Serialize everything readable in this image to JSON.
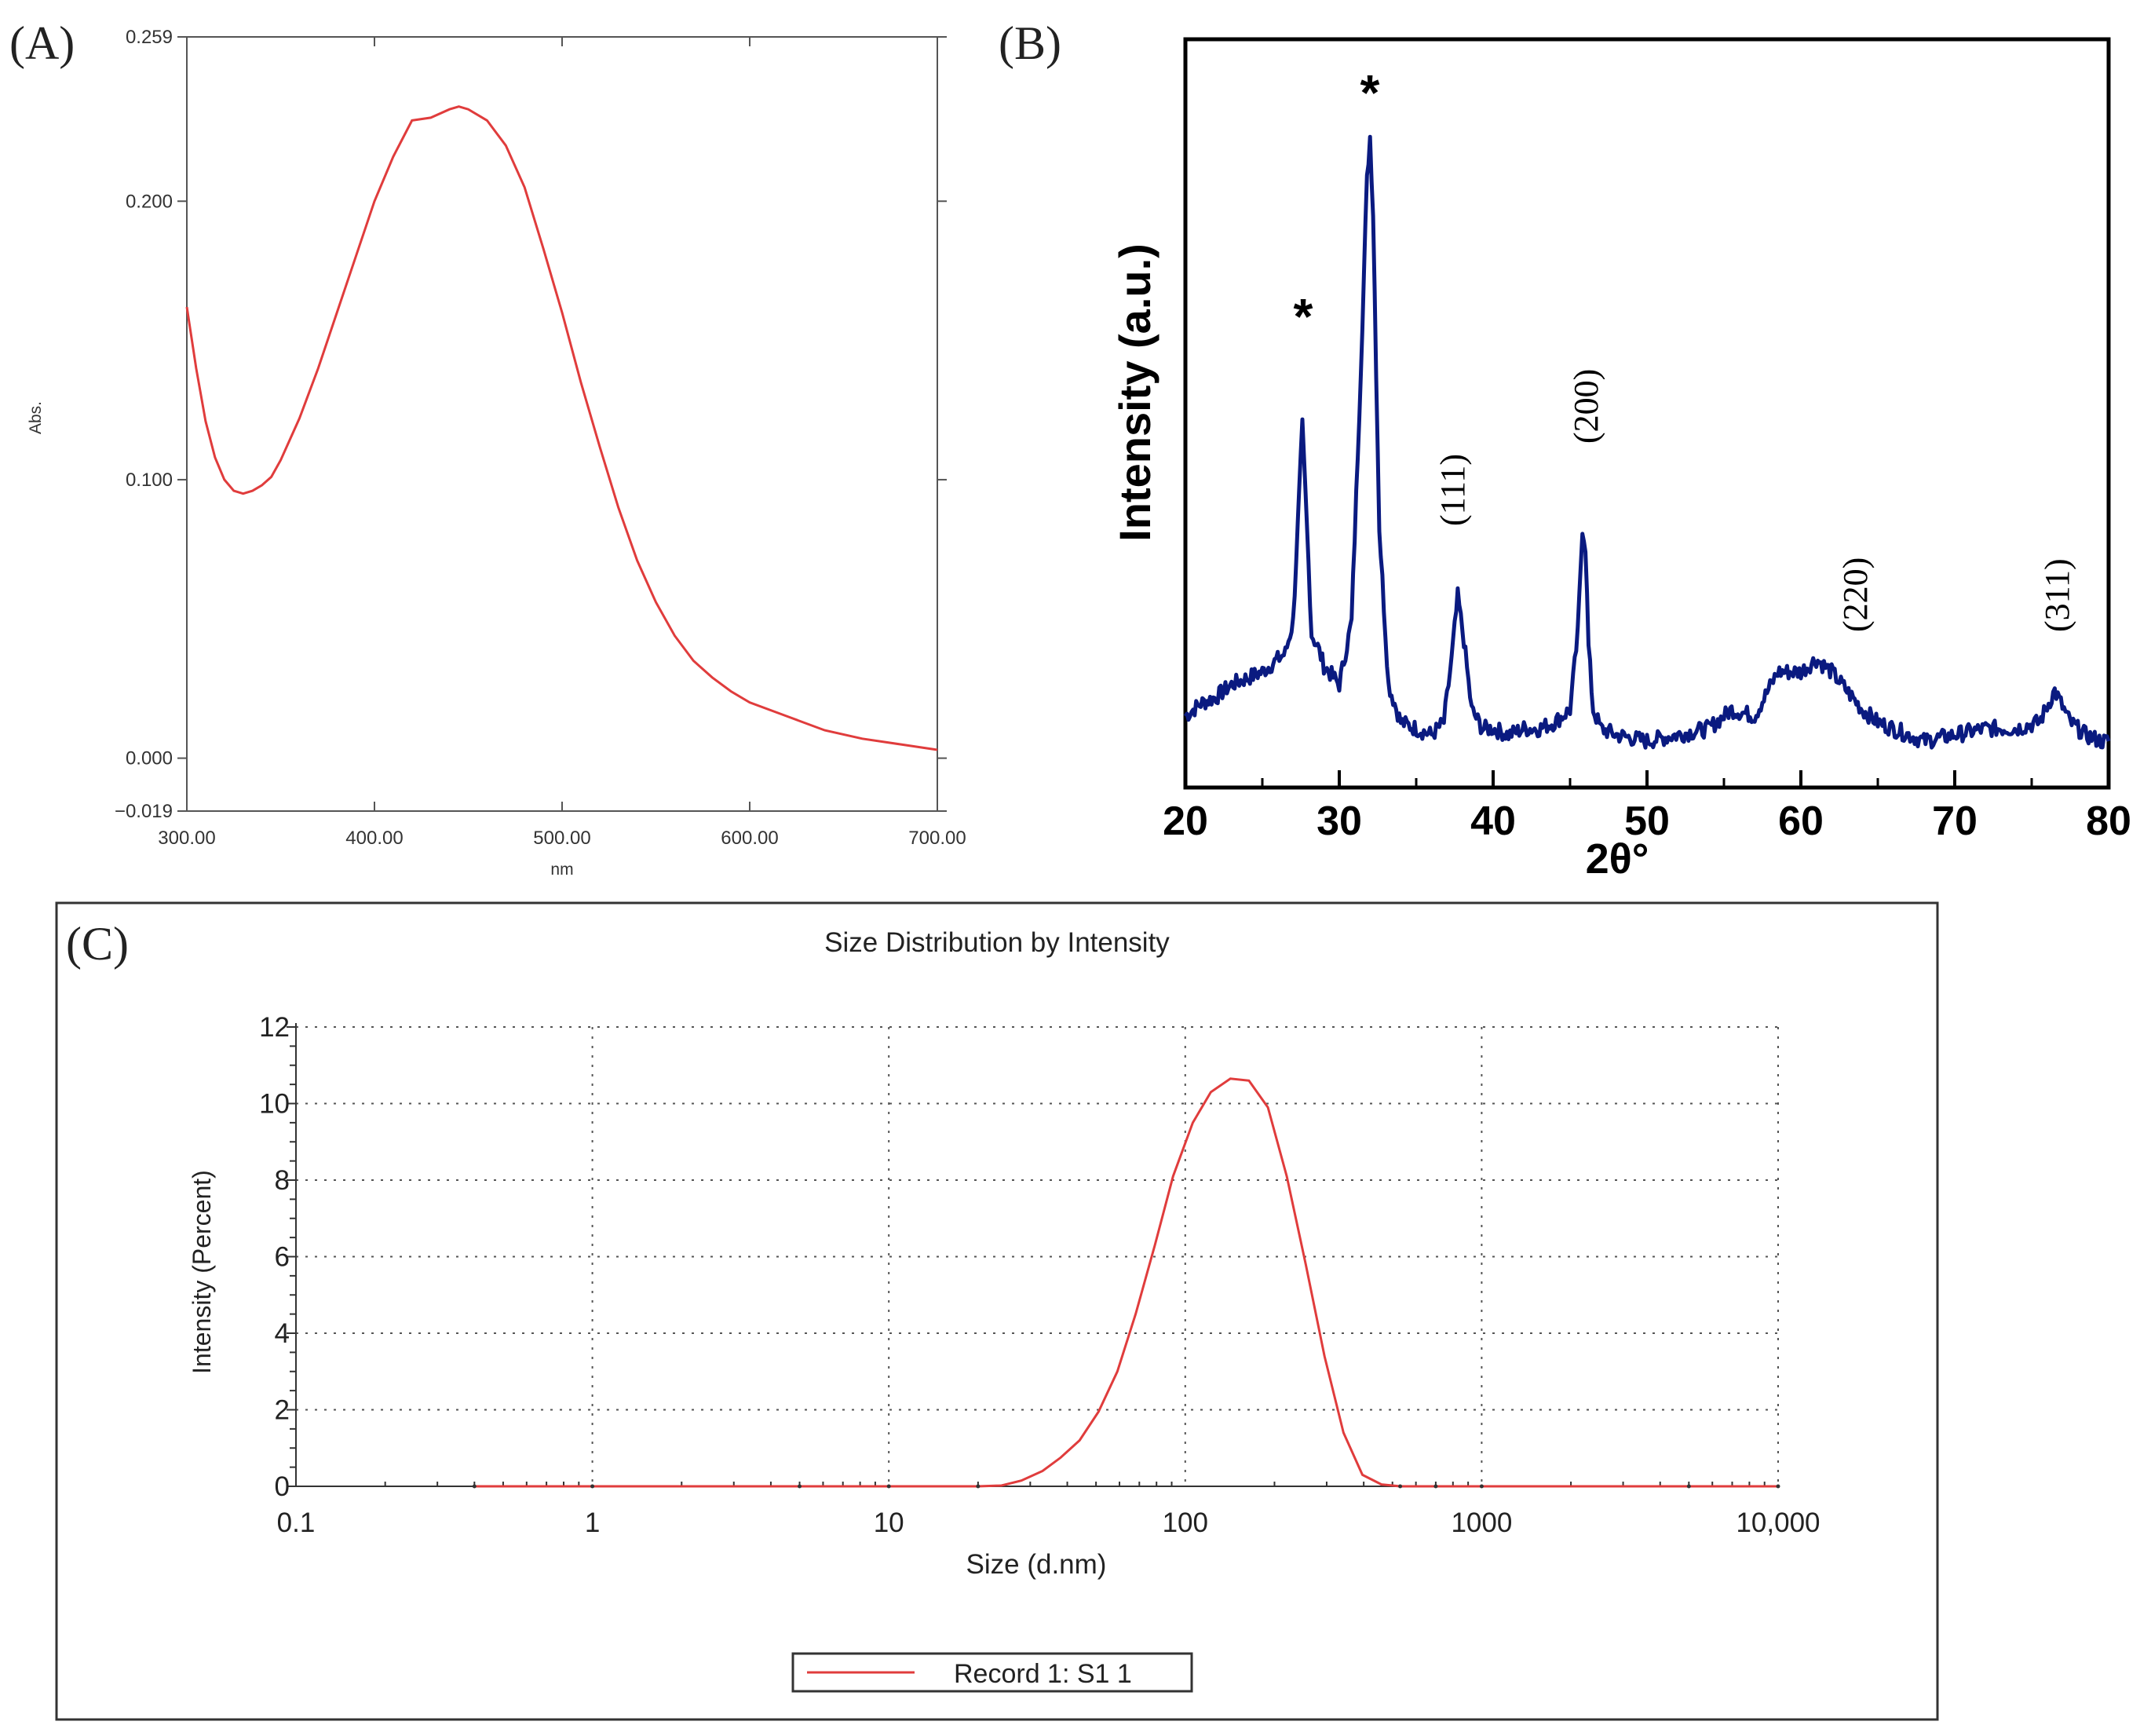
{
  "panels": {
    "a_label": "(A)",
    "b_label": "(B)",
    "c_label": "(C)"
  },
  "chart_data": [
    {
      "type": "line",
      "panel": "(A)",
      "title": "",
      "xlabel": "nm",
      "ylabel": "Abs.",
      "xlim": [
        300,
        700
      ],
      "ylim": [
        -0.019,
        0.259
      ],
      "xticks": [
        300,
        400,
        500,
        600,
        700
      ],
      "xtick_labels": [
        "300.00",
        "400.00",
        "500.00",
        "600.00",
        "700.00"
      ],
      "yticks": [
        -0.019,
        0.0,
        0.1,
        0.2,
        0.259
      ],
      "ytick_labels": [
        "−0.019",
        "0.000",
        "0.100",
        "0.200",
        "0.259"
      ],
      "grid": false,
      "color": "#e03c3c",
      "x": [
        300,
        305,
        310,
        315,
        320,
        325,
        330,
        335,
        340,
        345,
        350,
        360,
        370,
        380,
        390,
        400,
        410,
        420,
        430,
        440,
        445,
        450,
        460,
        470,
        480,
        490,
        500,
        510,
        520,
        530,
        540,
        550,
        560,
        570,
        580,
        590,
        600,
        620,
        640,
        660,
        680,
        700
      ],
      "y": [
        0.162,
        0.14,
        0.121,
        0.108,
        0.1,
        0.096,
        0.095,
        0.096,
        0.098,
        0.101,
        0.107,
        0.122,
        0.14,
        0.16,
        0.18,
        0.2,
        0.216,
        0.229,
        0.23,
        0.233,
        0.234,
        0.233,
        0.229,
        0.22,
        0.205,
        0.183,
        0.16,
        0.135,
        0.112,
        0.09,
        0.071,
        0.056,
        0.044,
        0.035,
        0.029,
        0.024,
        0.02,
        0.015,
        0.01,
        0.007,
        0.005,
        0.003
      ]
    },
    {
      "type": "line",
      "panel": "(B)",
      "title": "",
      "xlabel": "2θ°",
      "ylabel": "Intensity (a.u.)",
      "xlim": [
        20,
        80
      ],
      "ylim": [
        0,
        100
      ],
      "xticks": [
        20,
        30,
        40,
        50,
        60,
        70,
        80
      ],
      "xtick_labels": [
        "20",
        "30",
        "40",
        "50",
        "60",
        "70",
        "80"
      ],
      "yticks": [],
      "grid": false,
      "color": "#0a1a80",
      "x": [
        20,
        21,
        22,
        23,
        24,
        25,
        26,
        26.5,
        27,
        27.3,
        27.6,
        27.9,
        28.2,
        28.6,
        29,
        30,
        30.8,
        31.4,
        31.8,
        32.0,
        32.2,
        32.6,
        33.2,
        34,
        35,
        36,
        36.8,
        37.3,
        37.7,
        38.1,
        38.6,
        39.3,
        40,
        41,
        42,
        43,
        44,
        45,
        45.5,
        45.8,
        46.0,
        46.2,
        46.5,
        47,
        48,
        50,
        52,
        54,
        55.5,
        57,
        58.5,
        60,
        61,
        62,
        63,
        64,
        65,
        66,
        67,
        68,
        70,
        72,
        74,
        75.5,
        76.5,
        77.5,
        78.5,
        79.5,
        80
      ],
      "y": [
        5,
        7,
        8,
        10,
        11,
        12,
        14,
        15,
        20,
        35,
        51,
        35,
        18,
        16,
        13,
        10,
        20,
        60,
        90,
        97,
        85,
        35,
        10,
        4,
        3,
        2,
        4,
        14,
        24,
        17,
        6,
        3,
        3,
        2,
        3,
        3,
        4,
        6,
        18,
        35,
        32,
        16,
        6,
        3,
        2,
        1,
        2,
        3,
        6,
        5,
        12,
        12,
        14,
        12,
        9,
        6,
        4,
        3,
        2,
        1,
        2,
        3,
        3,
        4,
        9,
        4,
        2,
        1,
        1
      ],
      "annotations": [
        "*",
        "*",
        "(111)",
        "(200)",
        "(220)",
        "(311)"
      ]
    },
    {
      "type": "line",
      "panel": "(C)",
      "title": "Size Distribution by Intensity",
      "xlabel": "Size (d.nm)",
      "ylabel": "Intensity (Percent)",
      "xscale": "log",
      "xlim": [
        0.1,
        10000
      ],
      "ylim": [
        0,
        12
      ],
      "xticks": [
        0.1,
        1,
        10,
        100,
        1000,
        10000
      ],
      "xtick_labels": [
        "0.1",
        "1",
        "10",
        "100",
        "1000",
        "10,000"
      ],
      "yticks": [
        0,
        2,
        4,
        6,
        8,
        10,
        12
      ],
      "ytick_labels": [
        "0",
        "2",
        "4",
        "6",
        "8",
        "10",
        "12"
      ],
      "grid": true,
      "legend": "bottom-center",
      "series": [
        {
          "name": "Record 1: S1 1",
          "color": "#e03c3c",
          "x": [
            0.4,
            1,
            5,
            10,
            20,
            24,
            28,
            33,
            38,
            44,
            51,
            59,
            68,
            79,
            91,
            106,
            122,
            142,
            164,
            190,
            220,
            255,
            295,
            342,
            396,
            459,
            531,
            700,
            1000,
            5000,
            10000
          ],
          "y": [
            0,
            0,
            0,
            0,
            0,
            0.02,
            0.15,
            0.4,
            0.75,
            1.2,
            1.95,
            3.0,
            4.5,
            6.3,
            8.1,
            9.5,
            10.3,
            10.65,
            10.6,
            9.9,
            8.1,
            5.8,
            3.4,
            1.4,
            0.3,
            0.05,
            0,
            0,
            0,
            0,
            0
          ]
        }
      ]
    }
  ]
}
